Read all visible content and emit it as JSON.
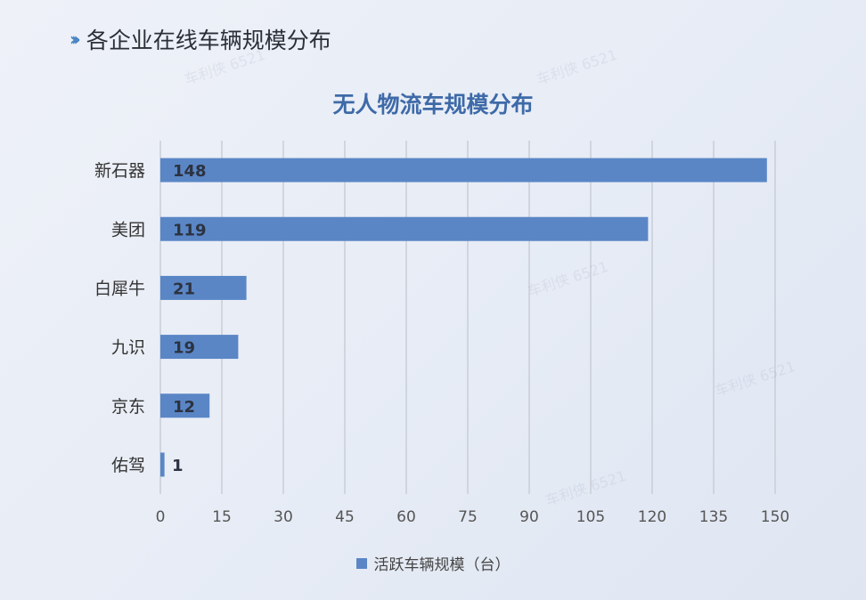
{
  "header": {
    "icon": "triple-chevron-icon",
    "title": "各企业在线车辆规模分布"
  },
  "watermark_text": "车利侠 6521",
  "colors": {
    "bar": "#5a86c6",
    "title": "#3e6aa8",
    "grid": "#c9cdd6"
  },
  "chart_data": {
    "type": "bar",
    "orientation": "horizontal",
    "title": "无人物流车规模分布",
    "categories": [
      "新石器",
      "美团",
      "白犀牛",
      "九识",
      "京东",
      "佑驾"
    ],
    "series": [
      {
        "name": "活跃车辆规模（台）",
        "values": [
          148,
          119,
          21,
          19,
          12,
          1
        ]
      }
    ],
    "xlim": [
      0,
      150
    ],
    "xticks": [
      0,
      15,
      30,
      45,
      60,
      75,
      90,
      105,
      120,
      135,
      150
    ],
    "grid": true,
    "legend_position": "bottom"
  }
}
